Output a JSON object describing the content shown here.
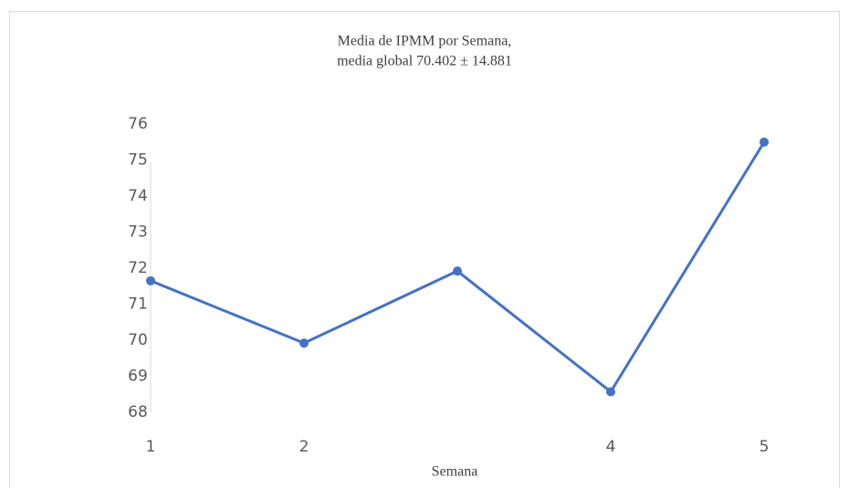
{
  "chart_data": {
    "type": "line",
    "title": [
      "Media de IPMM por Semana,",
      "media global 70.402 ± 14.881"
    ],
    "x_label": "Semana",
    "categories": [
      "1",
      "2",
      null,
      "4",
      "5"
    ],
    "series": [
      {
        "name": "Media de IPMM",
        "color": "#4472c4",
        "values": [
          71.65,
          69.92,
          71.92,
          68.57,
          75.5
        ]
      }
    ],
    "ylim": [
      68,
      76
    ],
    "yticks": [
      68,
      69,
      70,
      71,
      72,
      73,
      74,
      75,
      76
    ]
  }
}
